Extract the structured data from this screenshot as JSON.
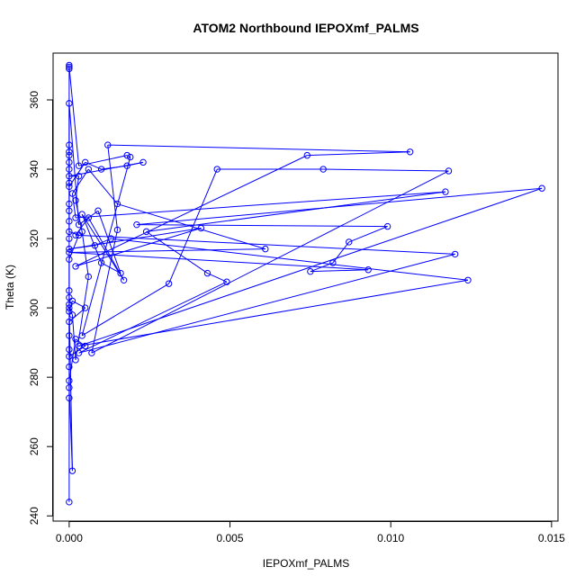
{
  "chart_data": {
    "type": "scatter",
    "title": "ATOM2 Northbound IEPOXmf_PALMS",
    "xlabel": "IEPOXmf_PALMS",
    "ylabel": "Theta (K)",
    "xlim": [
      -0.0005,
      0.0152
    ],
    "ylim": [
      238.5,
      373.5
    ],
    "x_ticks": [
      0.0,
      0.005,
      0.01,
      0.015
    ],
    "x_tick_labels": [
      "0.000",
      "0.005",
      "0.010",
      "0.015"
    ],
    "y_ticks": [
      240,
      260,
      280,
      300,
      320,
      340,
      360
    ],
    "y_tick_labels": [
      "240",
      "260",
      "280",
      "300",
      "320",
      "340",
      "360"
    ],
    "grid": false,
    "colors": {
      "series": "#0000ff"
    },
    "series": [
      {
        "points": [
          [
            0.0,
            244
          ],
          [
            0.0,
            274
          ],
          [
            0.0,
            279
          ],
          [
            0.0002,
            291
          ],
          [
            0.0005,
            289
          ],
          [
            0.0,
            286
          ],
          [
            0.0,
            292
          ],
          [
            0.0,
            299
          ],
          [
            0.0001,
            302
          ],
          [
            0.0005,
            300
          ],
          [
            0.0,
            296
          ],
          [
            0.0,
            288
          ],
          [
            0.0,
            283
          ],
          [
            0.0,
            277
          ],
          [
            0.0001,
            253
          ],
          [
            0.0,
            301
          ],
          [
            0.0,
            303
          ],
          [
            0.0,
            305
          ],
          [
            0.0,
            320
          ],
          [
            0.0,
            330
          ],
          [
            0.0,
            345
          ],
          [
            0.0,
            369
          ],
          [
            0.0,
            370
          ],
          [
            0.0,
            369.5
          ],
          [
            0.0003,
            341
          ],
          [
            0.0018,
            344
          ],
          [
            0.0019,
            343.5
          ],
          [
            0.0004,
            292
          ],
          [
            0.0031,
            307
          ],
          [
            0.0046,
            340
          ],
          [
            0.0079,
            340
          ],
          [
            0.0118,
            339.5
          ],
          [
            0.0007,
            287
          ],
          [
            0.0015,
            322.5
          ],
          [
            0.0012,
            347
          ],
          [
            0.0106,
            345
          ],
          [
            0.0074,
            344
          ],
          [
            0.0002,
            312
          ],
          [
            0.0041,
            323
          ],
          [
            0.0,
            317
          ],
          [
            0.0008,
            318
          ],
          [
            0.0013,
            320
          ],
          [
            0.0124,
            308
          ],
          [
            0.0003,
            289
          ],
          [
            0.0147,
            334.5
          ],
          [
            0.0021,
            324
          ],
          [
            0.0099,
            323.5
          ],
          [
            0.0087,
            319
          ],
          [
            0.0082,
            313
          ],
          [
            0.0075,
            310.5
          ],
          [
            0.0093,
            311
          ],
          [
            0.0,
            316
          ],
          [
            0.0061,
            317
          ],
          [
            0.0015,
            330
          ],
          [
            0.0006,
            340
          ],
          [
            0.0001,
            333
          ],
          [
            0.0002,
            326
          ],
          [
            0.0117,
            333.5
          ],
          [
            0.0024,
            322
          ],
          [
            0.0043,
            310
          ],
          [
            0.0049,
            307.5
          ],
          [
            0.0003,
            287
          ],
          [
            0.012,
            315.5
          ],
          [
            0.0002,
            321
          ],
          [
            0.0006,
            326
          ],
          [
            0.0017,
            308
          ],
          [
            0.0004,
            327
          ],
          [
            0.001,
            313
          ],
          [
            0.0016,
            310
          ],
          [
            0.0009,
            328
          ],
          [
            0.0003,
            324
          ],
          [
            0.0,
            359
          ],
          [
            0.0,
            340
          ],
          [
            0.0,
            335
          ],
          [
            0.0005,
            342
          ],
          [
            0.001,
            340
          ],
          [
            0.0018,
            341
          ],
          [
            0.0023,
            342
          ],
          [
            0.0,
            338
          ],
          [
            0.0003,
            338
          ],
          [
            0.0002,
            331
          ],
          [
            0.0004,
            322
          ],
          [
            0.0006,
            309
          ],
          [
            0.0002,
            285
          ],
          [
            0.0001,
            298
          ],
          [
            0.0,
            300
          ],
          [
            0.0,
            314
          ],
          [
            0.0003,
            321
          ],
          [
            0.0,
            322
          ],
          [
            0.0,
            325
          ],
          [
            0.0,
            328
          ],
          [
            0.0,
            336
          ],
          [
            0.0,
            342
          ],
          [
            0.0,
            344
          ],
          [
            0.0,
            347
          ]
        ]
      }
    ]
  }
}
